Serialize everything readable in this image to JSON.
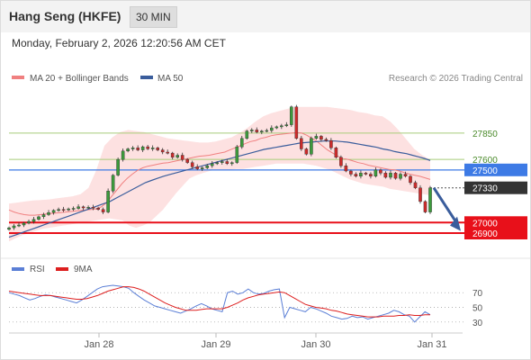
{
  "header": {
    "instrument": "Hang Seng (HKFE)",
    "timeframe": "30 MIN"
  },
  "datetime": "Monday, February 2, 2026 12:20:56 AM CET",
  "legend": {
    "ma_bollinger": "MA 20 + Bollinger Bands",
    "ma50": "MA 50",
    "credit": "Research © 2026 Trading Central",
    "rsi": "RSI",
    "rsi_ma": "9MA"
  },
  "colors": {
    "bollinger_band": "#fde1e1",
    "ma20": "#f08080",
    "ma50": "#3a5d9c",
    "resistance": "#a8cc7a",
    "pivot": "#3d7ae5",
    "support": "#e8101a",
    "price_tag": "#333333",
    "forecast_arrow": "#3a5d9c",
    "candle_up": "#3c9a3c",
    "candle_down": "#cc2b2b",
    "rsi": "#5b7fd6",
    "rsi_ma": "#dd1f1f"
  },
  "chart_data": {
    "type": "candlestick",
    "x_ticks": [
      "Jan 28",
      "Jan 29",
      "Jan 30",
      "Jan 31"
    ],
    "y_range": [
      26780,
      28260
    ],
    "levels": [
      {
        "label": "27850",
        "value": 27850,
        "kind": "resistance"
      },
      {
        "label": "27600",
        "value": 27600,
        "kind": "resistance"
      },
      {
        "label": "27500",
        "value": 27500,
        "kind": "pivot"
      },
      {
        "label": "27330",
        "value": 27330,
        "kind": "last"
      },
      {
        "label": "27000",
        "value": 27000,
        "kind": "support"
      },
      {
        "label": "26900",
        "value": 26900,
        "kind": "support"
      }
    ],
    "forecast": {
      "from": 27330,
      "to": 26920,
      "direction": "down"
    },
    "price": [
      26950,
      26968,
      26977,
      26995,
      27010,
      27030,
      27055,
      27075,
      27095,
      27115,
      27125,
      27120,
      27130,
      27135,
      27150,
      27140,
      27145,
      27138,
      27125,
      27100,
      27300,
      27450,
      27600,
      27680,
      27700,
      27710,
      27690,
      27720,
      27700,
      27710,
      27690,
      27670,
      27660,
      27620,
      27640,
      27600,
      27570,
      27530,
      27510,
      27520,
      27540,
      27560,
      27570,
      27580,
      27560,
      27570,
      27720,
      27800,
      27870,
      27880,
      27860,
      27870,
      27875,
      27900,
      27910,
      27920,
      27930,
      28100,
      27800,
      27700,
      27650,
      27800,
      27820,
      27790,
      27780,
      27710,
      27620,
      27540,
      27490,
      27460,
      27440,
      27470,
      27460,
      27440,
      27500,
      27470,
      27430,
      27470,
      27420,
      27460,
      27440,
      27380,
      27330,
      27200,
      27100,
      27330
    ],
    "ma20": [
      27120,
      27100,
      27085,
      27075,
      27070,
      27070,
      27075,
      27080,
      27085,
      27090,
      27095,
      27100,
      27105,
      27110,
      27115,
      27120,
      27125,
      27130,
      27150,
      27190,
      27250,
      27310,
      27370,
      27420,
      27460,
      27495,
      27520,
      27535,
      27545,
      27555,
      27565,
      27570,
      27580,
      27590,
      27600,
      27610,
      27620,
      27630,
      27635,
      27640,
      27650,
      27660,
      27670,
      27690,
      27710,
      27730,
      27750,
      27770,
      27780,
      27800,
      27810,
      27825,
      27835,
      27840,
      27845,
      27850,
      27855,
      27850,
      27830,
      27800,
      27770,
      27730,
      27690,
      27660,
      27630,
      27610,
      27600,
      27585,
      27570,
      27560,
      27545,
      27535,
      27525,
      27515,
      27505,
      27500,
      27490,
      27475,
      27460,
      27450,
      27440,
      27425,
      27410
    ],
    "bb_upper": [
      27180,
      27190,
      27200,
      27210,
      27215,
      27220,
      27230,
      27240,
      27250,
      27270,
      27330,
      27500,
      27730,
      27810,
      27860,
      27880,
      27870,
      27860,
      27840,
      27820,
      27800,
      27790,
      27780,
      27770,
      27760,
      27760,
      27770,
      27790,
      27810,
      27850,
      27900,
      27960,
      28010,
      28040,
      28060,
      28080,
      28100,
      28100,
      28100,
      28100,
      28100,
      28090,
      28080,
      28070,
      28050,
      28040,
      28020,
      28010,
      27960,
      27880,
      27790,
      27700,
      27640,
      27600
    ],
    "bb_lower": [
      26820,
      26850,
      26880,
      26900,
      26920,
      26940,
      26950,
      26960,
      26970,
      26980,
      26990,
      27000,
      27010,
      27020,
      27030,
      27040,
      27030,
      27020,
      26970,
      26950,
      26970,
      27000,
      27060,
      27120,
      27200,
      27280,
      27350,
      27420,
      27450,
      27470,
      27490,
      27500,
      27500,
      27500,
      27510,
      27510,
      27520,
      27530,
      27540,
      27550,
      27560,
      27560,
      27560,
      27560,
      27560,
      27550,
      27540,
      27520,
      27500,
      27470,
      27440,
      27410,
      27390,
      27370,
      27360,
      27350,
      27340,
      27320,
      27310,
      27300,
      27290,
      27280,
      27270,
      27260
    ],
    "ma50": [
      26860,
      26880,
      26900,
      26920,
      26940,
      26960,
      26980,
      27000,
      27020,
      27040,
      27060,
      27080,
      27100,
      27120,
      27140,
      27160,
      27180,
      27200,
      27230,
      27260,
      27290,
      27320,
      27350,
      27380,
      27400,
      27420,
      27440,
      27455,
      27470,
      27485,
      27500,
      27515,
      27530,
      27545,
      27560,
      27575,
      27590,
      27605,
      27620,
      27635,
      27650,
      27665,
      27680,
      27695,
      27705,
      27715,
      27725,
      27735,
      27745,
      27755,
      27760,
      27765,
      27770,
      27775,
      27775,
      27775,
      27770,
      27765,
      27755,
      27745,
      27735,
      27725,
      27715,
      27700,
      27690,
      27675,
      27665,
      27655,
      27640,
      27625,
      27610,
      27590
    ],
    "rsi": {
      "ticks": [
        "70",
        "50",
        "30"
      ],
      "range": [
        20,
        80
      ],
      "rsi": [
        70,
        68,
        66,
        63,
        60,
        62,
        65,
        67,
        66,
        64,
        62,
        60,
        58,
        56,
        60,
        65,
        70,
        75,
        78,
        79,
        80,
        79,
        78,
        76,
        70,
        65,
        60,
        56,
        52,
        50,
        48,
        46,
        44,
        42,
        45,
        48,
        52,
        55,
        52,
        48,
        46,
        44,
        70,
        72,
        68,
        70,
        75,
        70,
        68,
        69,
        72,
        74,
        75,
        36,
        50,
        48,
        46,
        44,
        50,
        48,
        45,
        42,
        38,
        36,
        34,
        35,
        38,
        36,
        37,
        34,
        36,
        38,
        40,
        42,
        46,
        44,
        40,
        38,
        30,
        37,
        44,
        40
      ],
      "ma9": [
        72,
        71,
        70,
        69,
        68,
        67,
        66,
        66,
        66,
        65,
        64,
        63,
        62,
        61,
        61,
        62,
        64,
        66,
        69,
        72,
        74,
        76,
        78,
        78,
        77,
        75,
        72,
        68,
        64,
        60,
        56,
        53,
        50,
        48,
        46,
        46,
        46,
        47,
        48,
        48,
        48,
        48,
        50,
        53,
        56,
        60,
        63,
        65,
        67,
        68,
        69,
        70,
        71,
        70,
        66,
        62,
        58,
        54,
        52,
        50,
        49,
        48,
        46,
        45,
        43,
        41,
        40,
        39,
        38,
        37,
        37,
        37,
        38,
        38,
        38,
        39,
        39,
        40,
        39,
        39,
        40,
        40
      ]
    }
  }
}
